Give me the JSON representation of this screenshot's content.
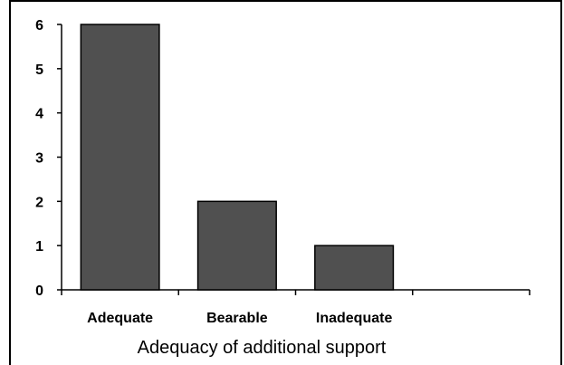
{
  "chart_data": {
    "type": "bar",
    "categories": [
      "Adequate",
      "Bearable",
      "Inadequate",
      ""
    ],
    "values": [
      6,
      2,
      1,
      null
    ],
    "title": "",
    "xlabel": "Adequacy of additional support",
    "ylabel": "",
    "ylim": [
      0,
      6
    ],
    "yticks": [
      "0",
      "1",
      "2",
      "3",
      "4",
      "5",
      "6"
    ],
    "grid": false,
    "legend": "none",
    "bar_color": "#505050",
    "bar_edge_color": "#000000"
  }
}
